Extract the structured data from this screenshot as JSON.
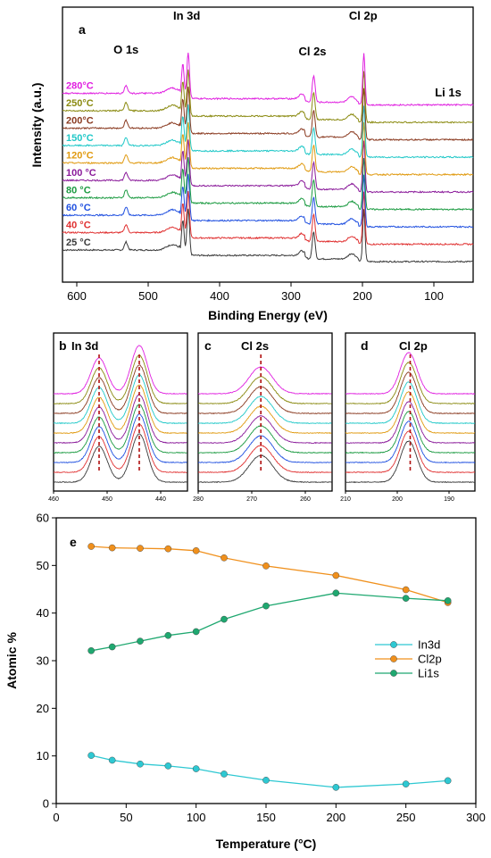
{
  "chart_data": [
    {
      "panel": "a",
      "type": "line",
      "xlabel": "Binding Energy (eV)",
      "ylabel": "Intensity (a.u.)",
      "xlim": [
        620,
        45
      ],
      "xticks": [
        600,
        500,
        400,
        300,
        200,
        100
      ],
      "peak_labels": [
        {
          "text": "O 1s",
          "x": 531
        },
        {
          "text": "In 3d",
          "x": 446
        },
        {
          "text": "Cl 2s",
          "x": 270
        },
        {
          "text": "Cl 2p",
          "x": 199
        },
        {
          "text": "Li 1s",
          "x": 60
        }
      ],
      "series": [
        {
          "name": "25 °C",
          "color": "#3a3a3a"
        },
        {
          "name": "40 °C",
          "color": "#e03030"
        },
        {
          "name": "60 °C",
          "color": "#2050e0"
        },
        {
          "name": "80 °C",
          "color": "#1a9a40"
        },
        {
          "name": "100 °C",
          "color": "#8a1a9a"
        },
        {
          "name": "120°C",
          "color": "#e09a10"
        },
        {
          "name": "150°C",
          "color": "#20c8c8"
        },
        {
          "name": "200°C",
          "color": "#8a3a20"
        },
        {
          "name": "250°C",
          "color": "#8a8a10"
        },
        {
          "name": "280°C",
          "color": "#e020e0"
        }
      ]
    },
    {
      "panel": "b",
      "type": "line",
      "peak_label": "In 3d",
      "xlim": [
        460,
        435
      ],
      "xticks": [
        460,
        450,
        440
      ],
      "dashed_markers": [
        451.5,
        444.0
      ]
    },
    {
      "panel": "c",
      "type": "line",
      "peak_label": "Cl 2s",
      "xlim": [
        280,
        255
      ],
      "xticks": [
        280,
        270,
        260
      ],
      "dashed_markers": [
        268.3
      ]
    },
    {
      "panel": "d",
      "type": "line",
      "peak_label": "Cl 2p",
      "xlim": [
        210,
        185
      ],
      "xticks": [
        210,
        200,
        190
      ],
      "dashed_markers": [
        197.5
      ]
    },
    {
      "panel": "e",
      "type": "line",
      "xlabel": "Temperature (°C)",
      "ylabel": "Atomic %",
      "xlim": [
        0,
        300
      ],
      "ylim": [
        0,
        60
      ],
      "xticks": [
        0,
        50,
        100,
        150,
        200,
        250,
        300
      ],
      "yticks": [
        0,
        10,
        20,
        30,
        40,
        50,
        60
      ],
      "legend_position": "center-right",
      "x": [
        25,
        40,
        60,
        80,
        100,
        120,
        150,
        200,
        250,
        280
      ],
      "series": [
        {
          "name": "In3d",
          "color": "#2ec8d2",
          "values": [
            10.1,
            9.1,
            8.3,
            7.9,
            7.3,
            6.2,
            4.9,
            3.4,
            4.1,
            4.8
          ]
        },
        {
          "name": "Cl2p",
          "color": "#f0901c",
          "values": [
            54.0,
            53.7,
            53.6,
            53.5,
            53.1,
            51.6,
            49.9,
            47.9,
            44.9,
            42.2
          ]
        },
        {
          "name": "Li1s",
          "color": "#1fa870",
          "values": [
            32.1,
            32.9,
            34.1,
            35.3,
            36.1,
            38.7,
            41.5,
            44.2,
            43.1,
            42.6
          ]
        }
      ]
    }
  ]
}
